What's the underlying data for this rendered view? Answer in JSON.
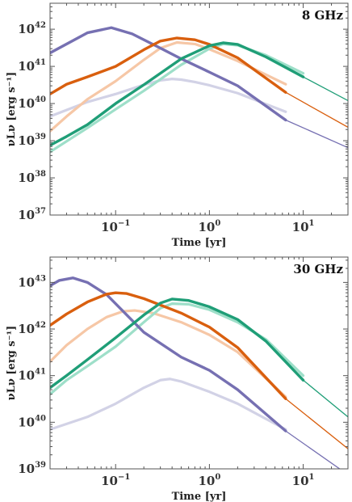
{
  "chart_data": [
    {
      "type": "line",
      "title": "",
      "panel_label": "8 GHz",
      "xlabel": "Time [yr]",
      "ylabel": "νLν [erg s⁻¹]",
      "xscale": "log",
      "yscale": "log",
      "xlim": [
        0.02,
        30
      ],
      "ylim": [
        1e+37,
        5e+42
      ],
      "x_major_ticks": [
        0.1,
        1,
        10
      ],
      "x_tick_labels": [
        {
          "base": "10",
          "exp": "−1"
        },
        {
          "base": "10",
          "exp": "0"
        },
        {
          "base": "10",
          "exp": "1"
        }
      ],
      "y_major_ticks": [
        1e+37,
        1e+38,
        1e+39,
        1e+40,
        1e+41,
        1e+42
      ],
      "y_tick_labels": [
        {
          "base": "10",
          "exp": "37"
        },
        {
          "base": "10",
          "exp": "38"
        },
        {
          "base": "10",
          "exp": "39"
        },
        {
          "base": "10",
          "exp": "40"
        },
        {
          "base": "10",
          "exp": "41"
        },
        {
          "base": "10",
          "exp": "42"
        }
      ],
      "legend": "none",
      "grid": false,
      "series": [
        {
          "color": "#d2d2e6",
          "style": "faint",
          "x": [
            0.02,
            0.05,
            0.1,
            0.2,
            0.3,
            0.4,
            0.5,
            0.7,
            1.0,
            2.0,
            6.5
          ],
          "y": [
            4.5e+39,
            1.1e+40,
            1.8e+40,
            3.2e+40,
            4.2e+40,
            4.6e+40,
            4.4e+40,
            3.8e+40,
            3.1e+40,
            1.9e+40,
            6e+39
          ]
        },
        {
          "color": "#f6c7a6",
          "style": "faint",
          "x": [
            0.02,
            0.03,
            0.05,
            0.1,
            0.2,
            0.3,
            0.45,
            0.7,
            1.0,
            2.0,
            6.5
          ],
          "y": [
            1.8e+39,
            4.5e+39,
            1.3e+40,
            4e+40,
            1.5e+41,
            3.1e+41,
            4.4e+41,
            4e+41,
            2.9e+41,
            1.4e+41,
            3.3e+40
          ]
        },
        {
          "color": "#9edfc9",
          "style": "faint",
          "x": [
            0.02,
            0.05,
            0.1,
            0.2,
            0.5,
            1.0,
            1.4,
            2.0,
            4.0,
            10.0
          ],
          "y": [
            5e+38,
            2.2e+39,
            7e+39,
            2.2e+40,
            1.1e+41,
            3e+41,
            4e+41,
            3.7e+41,
            2e+41,
            6.5e+40
          ]
        },
        {
          "color": "#7670b2",
          "style": "bold",
          "x": [
            0.02,
            0.05,
            0.09,
            0.15,
            0.3,
            0.5,
            1.0,
            2.0,
            6.5
          ],
          "y": [
            2.3e+41,
            8e+41,
            1.1e+42,
            7.5e+41,
            3.1e+41,
            1.6e+41,
            7e+40,
            3e+40,
            3.6e+39
          ]
        },
        {
          "color": "#d95f0e",
          "style": "bold",
          "x": [
            0.02,
            0.03,
            0.05,
            0.1,
            0.2,
            0.3,
            0.45,
            0.7,
            1.0,
            2.0,
            6.5
          ],
          "y": [
            1.8e+40,
            3.3e+40,
            5.2e+40,
            1e+41,
            2.8e+41,
            4.8e+41,
            5.8e+41,
            5.2e+41,
            3.9e+41,
            1.7e+41,
            2e+40
          ]
        },
        {
          "color": "#1f9e77",
          "style": "bold",
          "x": [
            0.02,
            0.03,
            0.05,
            0.1,
            0.2,
            0.5,
            1.0,
            1.4,
            2.0,
            4.0,
            10.0
          ],
          "y": [
            7.5e+38,
            1.3e+39,
            2.7e+39,
            1e+40,
            3.2e+40,
            1.6e+41,
            3.6e+41,
            4.3e+41,
            3.9e+41,
            1.8e+41,
            5.2e+40
          ]
        },
        {
          "color": "#7670b2",
          "style": "thin",
          "x": [
            6.5,
            30
          ],
          "y": [
            3.6e+39,
            6.5e+38
          ]
        },
        {
          "color": "#d95f0e",
          "style": "thin",
          "x": [
            6.5,
            30
          ],
          "y": [
            2e+40,
            2.3e+39
          ]
        },
        {
          "color": "#1f9e77",
          "style": "thin",
          "x": [
            10,
            30
          ],
          "y": [
            5.2e+40,
            1.2e+40
          ]
        }
      ]
    },
    {
      "type": "line",
      "title": "",
      "panel_label": "30 GHz",
      "xlabel": "Time [yr]",
      "ylabel": "νLν [erg s⁻¹]",
      "xscale": "log",
      "yscale": "log",
      "xlim": [
        0.02,
        30
      ],
      "ylim": [
        1e+39,
        3.5e+43
      ],
      "x_major_ticks": [
        0.1,
        1,
        10
      ],
      "x_tick_labels": [
        {
          "base": "10",
          "exp": "−1"
        },
        {
          "base": "10",
          "exp": "0"
        },
        {
          "base": "10",
          "exp": "1"
        }
      ],
      "y_major_ticks": [
        1e+39,
        1e+40,
        1e+41,
        1e+42,
        1e+43
      ],
      "y_tick_labels": [
        {
          "base": "10",
          "exp": "39"
        },
        {
          "base": "10",
          "exp": "40"
        },
        {
          "base": "10",
          "exp": "41"
        },
        {
          "base": "10",
          "exp": "42"
        },
        {
          "base": "10",
          "exp": "43"
        }
      ],
      "legend": "none",
      "grid": false,
      "series": [
        {
          "color": "#d2d2e6",
          "style": "faint",
          "x": [
            0.02,
            0.05,
            0.1,
            0.2,
            0.3,
            0.38,
            0.5,
            1.0,
            2.0,
            6.5
          ],
          "y": [
            7e+39,
            1.3e+40,
            2.5e+40,
            5.5e+40,
            8e+40,
            8.5e+40,
            7.5e+40,
            4.5e+40,
            2.5e+40,
            7e+39
          ]
        },
        {
          "color": "#f6c7a6",
          "style": "faint",
          "x": [
            0.02,
            0.03,
            0.05,
            0.08,
            0.12,
            0.16,
            0.25,
            0.5,
            1.0,
            2.0,
            6.5
          ],
          "y": [
            2e+41,
            4.5e+41,
            1e+42,
            1.8e+42,
            2.4e+42,
            2.5e+42,
            2.2e+42,
            1.4e+42,
            7.5e+41,
            3.2e+41,
            3.5e+40
          ]
        },
        {
          "color": "#9edfc9",
          "style": "faint",
          "x": [
            0.02,
            0.03,
            0.05,
            0.1,
            0.2,
            0.3,
            0.4,
            0.6,
            1.0,
            2.0,
            4.0,
            10.0
          ],
          "y": [
            4e+40,
            8e+40,
            1.6e+41,
            4.2e+41,
            1.4e+42,
            2.8e+42,
            3.5e+42,
            3.4e+42,
            2.6e+42,
            1.4e+42,
            6e+41,
            1e+41
          ]
        },
        {
          "color": "#7670b2",
          "style": "bold",
          "x": [
            0.02,
            0.025,
            0.035,
            0.05,
            0.08,
            0.1,
            0.2,
            0.5,
            1.0,
            2.0,
            6.5
          ],
          "y": [
            8.5e+42,
            1.1e+43,
            1.25e+43,
            1e+43,
            5.5e+42,
            3.5e+42,
            8.5e+41,
            2.5e+41,
            1.3e+41,
            5e+40,
            6.5e+39
          ]
        },
        {
          "color": "#d95f0e",
          "style": "bold",
          "x": [
            0.02,
            0.03,
            0.05,
            0.08,
            0.1,
            0.13,
            0.2,
            0.5,
            1.0,
            2.0,
            6.5
          ],
          "y": [
            1.2e+42,
            2.1e+42,
            3.8e+42,
            5.6e+42,
            6e+42,
            5.8e+42,
            4.5e+42,
            2.2e+42,
            1.1e+42,
            4e+41,
            3.2e+40
          ]
        },
        {
          "color": "#1f9e77",
          "style": "bold",
          "x": [
            0.02,
            0.03,
            0.05,
            0.1,
            0.2,
            0.3,
            0.4,
            0.6,
            1.0,
            2.0,
            4.0,
            10.0
          ],
          "y": [
            5.5e+40,
            1e+41,
            2.2e+41,
            6.5e+41,
            2e+42,
            3.6e+42,
            4.4e+42,
            4.1e+42,
            3e+42,
            1.6e+42,
            5.5e+41,
            8e+40
          ]
        },
        {
          "color": "#7670b2",
          "style": "thin",
          "x": [
            6.5,
            30
          ],
          "y": [
            6.5e+39,
            7.5e+38
          ]
        },
        {
          "color": "#d95f0e",
          "style": "thin",
          "x": [
            6.5,
            30
          ],
          "y": [
            3.2e+40,
            2.7e+39
          ]
        },
        {
          "color": "#1f9e77",
          "style": "thin",
          "x": [
            10,
            30
          ],
          "y": [
            8e+40,
            1.3e+40
          ]
        }
      ]
    }
  ]
}
